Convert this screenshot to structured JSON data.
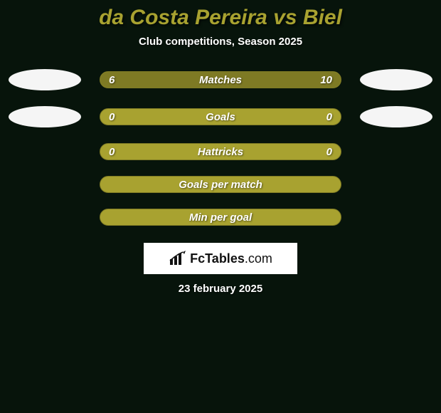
{
  "colors": {
    "background": "#07140b",
    "title": "#a8a230",
    "subtitle": "#ffffff",
    "ellipse": "#f5f5f5",
    "bar_bg": "#a8a230",
    "bar_fill": "#7e7a24",
    "bar_border": "#7e7a24",
    "bar_text": "#ffffff",
    "date_text": "#ffffff"
  },
  "title": "da Costa Pereira vs Biel",
  "subtitle": "Club competitions, Season 2025",
  "rows": [
    {
      "label": "Matches",
      "left": "6",
      "right": "10",
      "left_pct": 37.5,
      "right_pct": 62.5,
      "show_ellipses": true,
      "show_values": true
    },
    {
      "label": "Goals",
      "left": "0",
      "right": "0",
      "left_pct": 0,
      "right_pct": 0,
      "show_ellipses": true,
      "show_values": true
    },
    {
      "label": "Hattricks",
      "left": "0",
      "right": "0",
      "left_pct": 0,
      "right_pct": 0,
      "show_ellipses": false,
      "show_values": true
    },
    {
      "label": "Goals per match",
      "left": "",
      "right": "",
      "left_pct": 0,
      "right_pct": 0,
      "show_ellipses": false,
      "show_values": false
    },
    {
      "label": "Min per goal",
      "left": "",
      "right": "",
      "left_pct": 0,
      "right_pct": 0,
      "show_ellipses": false,
      "show_values": false
    }
  ],
  "logo": {
    "brand_bold": "FcTables",
    "brand_light": ".com"
  },
  "date": "23 february 2025"
}
